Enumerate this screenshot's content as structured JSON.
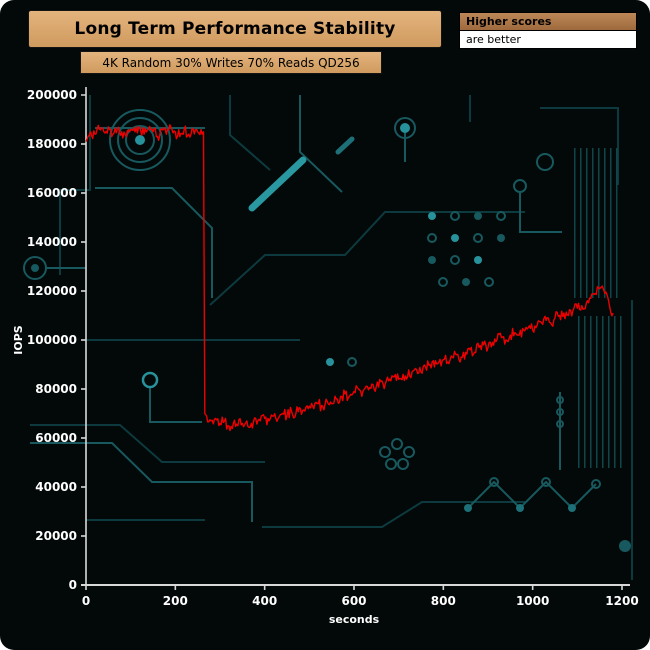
{
  "header": {
    "title": "Long Term Performance Stability",
    "subtitle": "4K Random 30% Writes 70% Reads QD256"
  },
  "legend": {
    "line1": "Higher scores",
    "line2": "are better"
  },
  "chart_data": {
    "type": "line",
    "title": "Long Term Performance Stability",
    "subtitle": "4K Random 30% Writes 70% Reads QD256",
    "xlabel": "seconds",
    "ylabel": "IOPS",
    "xlim": [
      0,
      1200
    ],
    "ylim": [
      0,
      200000
    ],
    "x_ticks": [
      0,
      200,
      400,
      600,
      800,
      1000,
      1200
    ],
    "y_ticks": [
      0,
      20000,
      40000,
      60000,
      80000,
      100000,
      120000,
      140000,
      160000,
      180000,
      200000
    ],
    "grid": false,
    "legend_position": "top-right",
    "annotations": [
      "Higher scores",
      "are better"
    ],
    "line_color": "#ee0000",
    "axis_color": "#d8d8d8",
    "tick_label_color": "#ffffff",
    "background_color": "#030808",
    "accent_color": "#17595e",
    "title_box_color": "#d6a269",
    "noise_amplitude": 2400,
    "series": [
      {
        "name": "4K Random 30% Writes 70% Reads QD256",
        "points": [
          [
            0,
            181000
          ],
          [
            10,
            185000
          ],
          [
            20,
            184000
          ],
          [
            30,
            186000
          ],
          [
            40,
            185000
          ],
          [
            50,
            187000
          ],
          [
            60,
            184000
          ],
          [
            70,
            186000
          ],
          [
            80,
            185000
          ],
          [
            90,
            183000
          ],
          [
            100,
            186000
          ],
          [
            110,
            185000
          ],
          [
            120,
            187000
          ],
          [
            130,
            184000
          ],
          [
            140,
            186000
          ],
          [
            150,
            185000
          ],
          [
            160,
            183000
          ],
          [
            170,
            186000
          ],
          [
            180,
            184000
          ],
          [
            190,
            187000
          ],
          [
            200,
            185000
          ],
          [
            210,
            183000
          ],
          [
            220,
            186000
          ],
          [
            230,
            184000
          ],
          [
            240,
            186000
          ],
          [
            250,
            185000
          ],
          [
            260,
            184000
          ],
          [
            263,
            185000
          ],
          [
            266,
            70000
          ],
          [
            270,
            69000
          ],
          [
            280,
            67000
          ],
          [
            290,
            68000
          ],
          [
            300,
            66000
          ],
          [
            310,
            67000
          ],
          [
            320,
            65000
          ],
          [
            330,
            66000
          ],
          [
            340,
            65000
          ],
          [
            350,
            66000
          ],
          [
            360,
            67000
          ],
          [
            370,
            66000
          ],
          [
            380,
            68000
          ],
          [
            390,
            67000
          ],
          [
            400,
            68000
          ],
          [
            410,
            67000
          ],
          [
            420,
            69000
          ],
          [
            430,
            68000
          ],
          [
            440,
            70000
          ],
          [
            450,
            69000
          ],
          [
            460,
            71000
          ],
          [
            470,
            70000
          ],
          [
            480,
            72000
          ],
          [
            490,
            71000
          ],
          [
            500,
            73000
          ],
          [
            510,
            72000
          ],
          [
            520,
            74000
          ],
          [
            530,
            73000
          ],
          [
            540,
            75000
          ],
          [
            550,
            74000
          ],
          [
            560,
            76000
          ],
          [
            570,
            77000
          ],
          [
            580,
            78000
          ],
          [
            590,
            77000
          ],
          [
            600,
            79000
          ],
          [
            610,
            80000
          ],
          [
            620,
            79000
          ],
          [
            630,
            81000
          ],
          [
            640,
            82000
          ],
          [
            650,
            81000
          ],
          [
            660,
            83000
          ],
          [
            670,
            82000
          ],
          [
            680,
            84000
          ],
          [
            690,
            85000
          ],
          [
            700,
            84000
          ],
          [
            710,
            86000
          ],
          [
            720,
            85000
          ],
          [
            730,
            87000
          ],
          [
            740,
            88000
          ],
          [
            750,
            87000
          ],
          [
            760,
            89000
          ],
          [
            770,
            90000
          ],
          [
            780,
            89000
          ],
          [
            790,
            91000
          ],
          [
            800,
            92000
          ],
          [
            810,
            91000
          ],
          [
            820,
            93000
          ],
          [
            830,
            94000
          ],
          [
            840,
            93000
          ],
          [
            850,
            95000
          ],
          [
            860,
            96000
          ],
          [
            870,
            95000
          ],
          [
            880,
            97000
          ],
          [
            890,
            98000
          ],
          [
            900,
            97000
          ],
          [
            910,
            99000
          ],
          [
            920,
            100000
          ],
          [
            930,
            101000
          ],
          [
            940,
            100000
          ],
          [
            950,
            102000
          ],
          [
            960,
            103000
          ],
          [
            970,
            102000
          ],
          [
            980,
            104000
          ],
          [
            990,
            105000
          ],
          [
            1000,
            104000
          ],
          [
            1010,
            106000
          ],
          [
            1020,
            107000
          ],
          [
            1030,
            108000
          ],
          [
            1040,
            107000
          ],
          [
            1050,
            109000
          ],
          [
            1060,
            110000
          ],
          [
            1070,
            111000
          ],
          [
            1080,
            110000
          ],
          [
            1090,
            112000
          ],
          [
            1100,
            113000
          ],
          [
            1110,
            114000
          ],
          [
            1120,
            115000
          ],
          [
            1130,
            117000
          ],
          [
            1140,
            119000
          ],
          [
            1150,
            121000
          ],
          [
            1156,
            122000
          ],
          [
            1162,
            119000
          ],
          [
            1170,
            116000
          ],
          [
            1180,
            111000
          ]
        ]
      }
    ]
  }
}
